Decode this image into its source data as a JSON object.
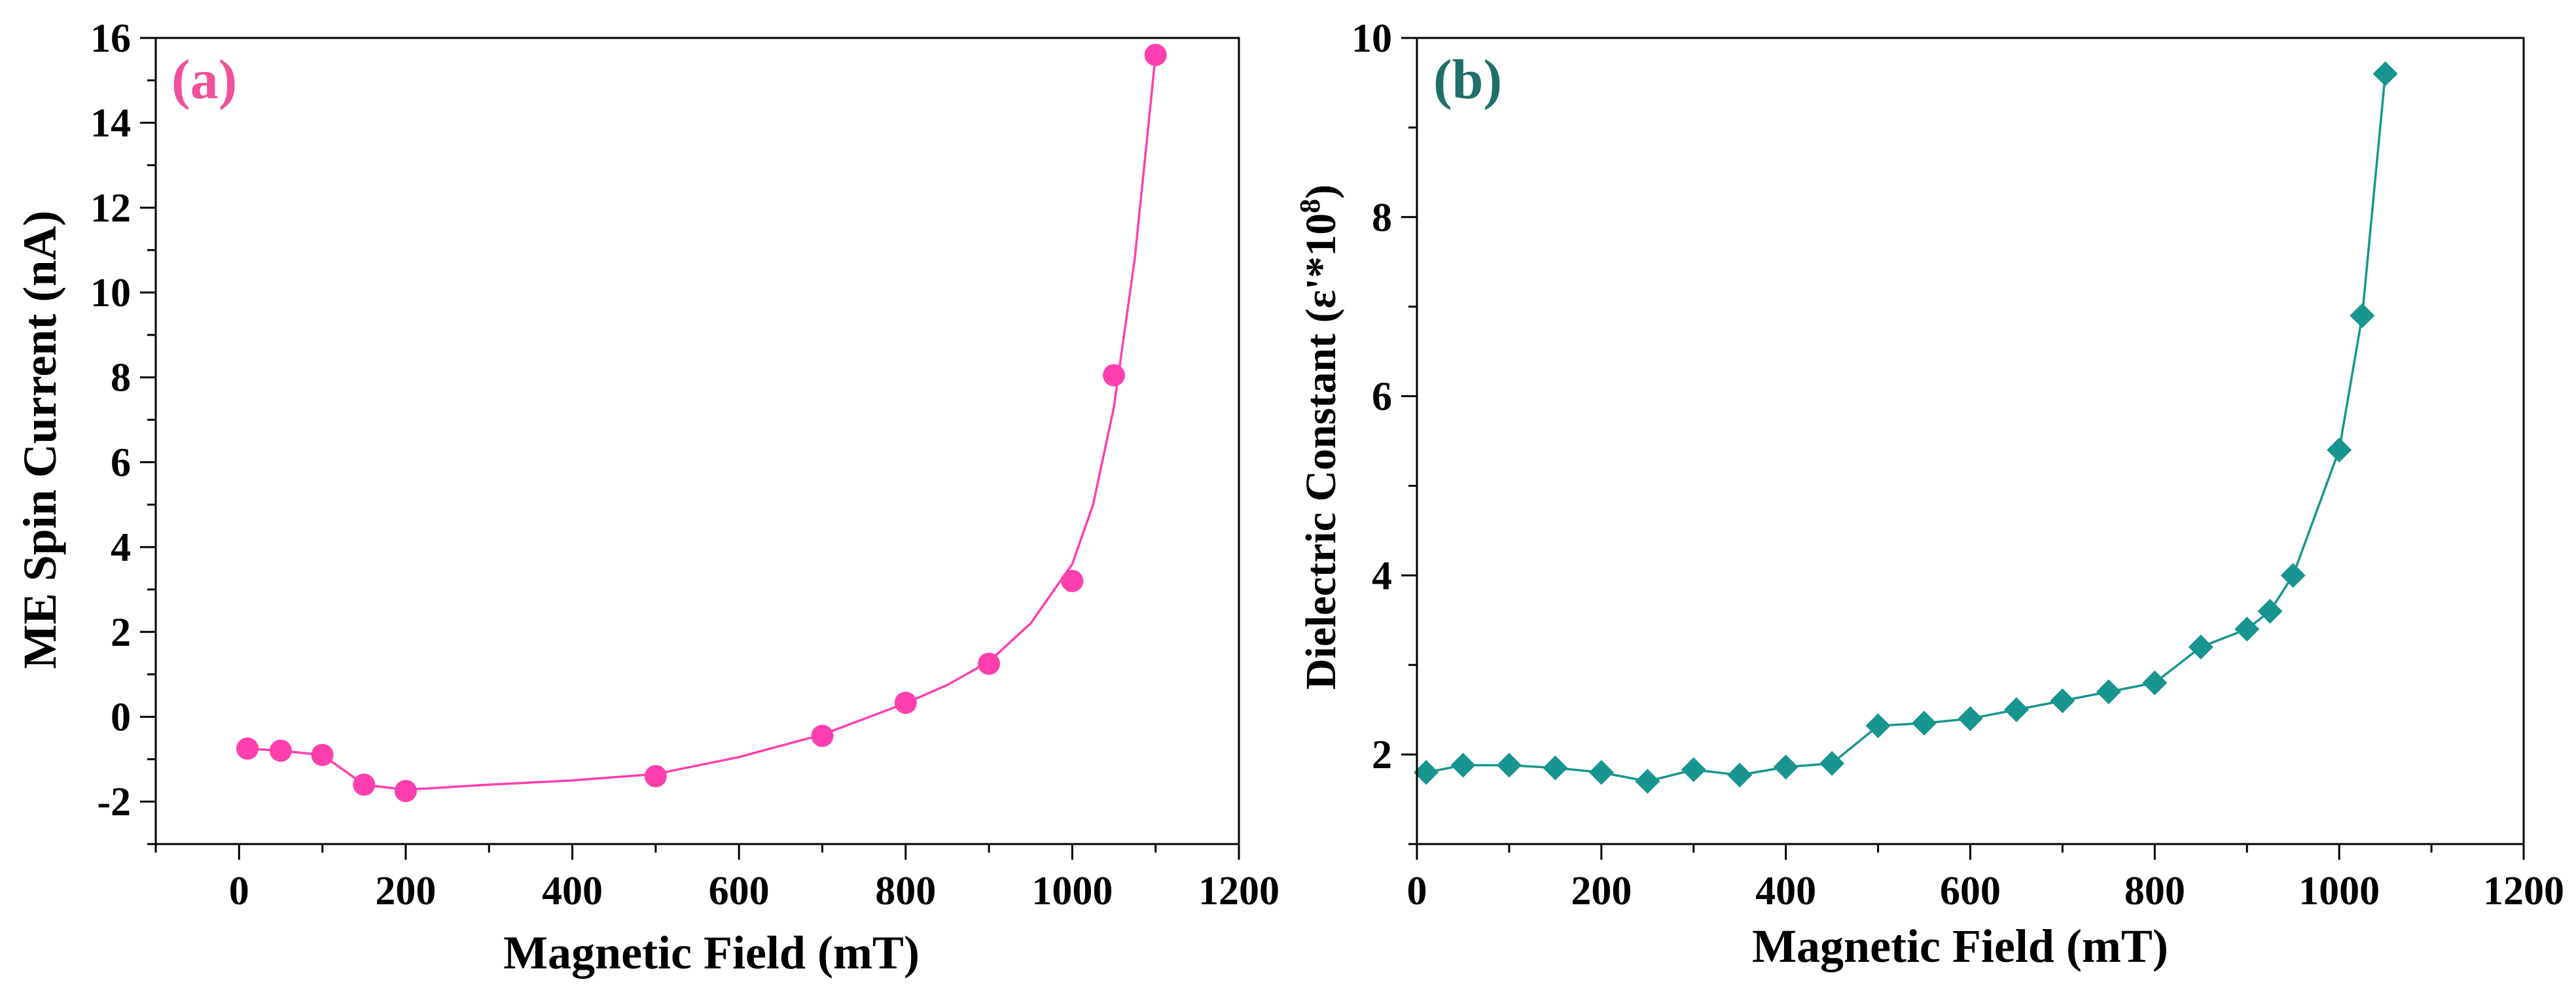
{
  "chart_data": [
    {
      "type": "line",
      "panel_label": "(a)",
      "title": "",
      "xlabel": "Magnetic Field (mT)",
      "ylabel": "ME Spin Current (nA)",
      "xlim": [
        -100,
        1200
      ],
      "ylim": [
        -3,
        16
      ],
      "xticks": [
        0,
        200,
        400,
        600,
        800,
        1000,
        1200
      ],
      "yticks": [
        -2,
        0,
        2,
        4,
        6,
        8,
        10,
        12,
        14,
        16
      ],
      "x_tick_labels": [
        "0",
        "200",
        "400",
        "600",
        "800",
        "1000",
        "1200"
      ],
      "y_tick_labels": [
        "-2",
        "0",
        "2",
        "4",
        "6",
        "8",
        "10",
        "12",
        "14",
        "16"
      ],
      "grid": false,
      "marker": "circle",
      "color": "#ff3fae",
      "label_color": "#f0509a",
      "series": [
        {
          "name": "ME Spin Current",
          "x": [
            10,
            50,
            100,
            150,
            200,
            500,
            700,
            800,
            900,
            1000,
            1050,
            1100
          ],
          "y": [
            -0.75,
            -0.8,
            -0.9,
            -1.6,
            -1.75,
            -1.4,
            -0.45,
            0.33,
            1.25,
            3.2,
            8.05,
            15.6
          ]
        }
      ],
      "fit_curve": {
        "x": [
          200,
          300,
          400,
          500,
          600,
          700,
          800,
          850,
          900,
          950,
          1000,
          1025,
          1050,
          1075,
          1100
        ],
        "y": [
          -1.72,
          -1.6,
          -1.5,
          -1.35,
          -0.95,
          -0.42,
          0.32,
          0.75,
          1.3,
          2.2,
          3.6,
          5.0,
          7.3,
          10.8,
          15.6
        ]
      }
    },
    {
      "type": "line",
      "panel_label": "(b)",
      "title": "",
      "xlabel": "Magnetic Field (mT)",
      "ylabel_main": "Dielectric Constant (ε'*10",
      "ylabel_exp": "8",
      "ylabel_close": ")",
      "xlim": [
        0,
        1200
      ],
      "ylim": [
        1,
        10
      ],
      "xticks": [
        0,
        200,
        400,
        600,
        800,
        1000,
        1200
      ],
      "yticks": [
        2,
        4,
        6,
        8,
        10
      ],
      "x_tick_labels": [
        "0",
        "200",
        "400",
        "600",
        "800",
        "1000",
        "1200"
      ],
      "y_tick_labels": [
        "2",
        "4",
        "6",
        "8",
        "10"
      ],
      "grid": false,
      "marker": "diamond",
      "color": "#18958f",
      "label_color": "#1f6f6a",
      "series": [
        {
          "name": "Dielectric Constant",
          "x": [
            10,
            50,
            100,
            150,
            200,
            250,
            300,
            350,
            400,
            450,
            500,
            550,
            600,
            650,
            700,
            750,
            800,
            850,
            900,
            925,
            950,
            1000,
            1025,
            1050
          ],
          "y": [
            1.8,
            1.88,
            1.88,
            1.85,
            1.8,
            1.7,
            1.83,
            1.77,
            1.86,
            1.9,
            2.32,
            2.35,
            2.4,
            2.5,
            2.6,
            2.7,
            2.8,
            3.2,
            3.4,
            3.6,
            4.0,
            5.4,
            6.9,
            9.6
          ]
        }
      ]
    }
  ]
}
